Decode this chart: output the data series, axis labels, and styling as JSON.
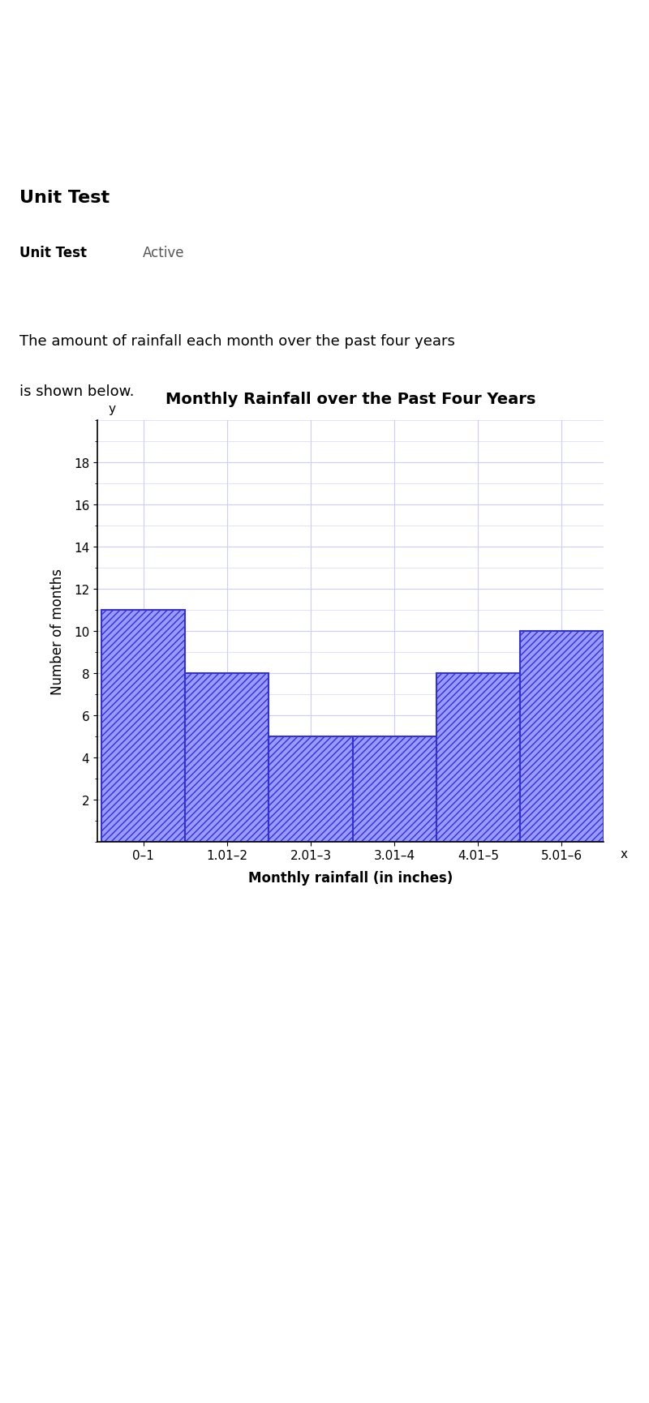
{
  "title": "Monthly Rainfall over the Past Four Years",
  "xlabel": "Monthly rainfall (in inches)",
  "ylabel": "Number of months",
  "categories": [
    "0–1",
    "1.01–2",
    "2.01–3",
    "3.01–4",
    "4.01–5",
    "5.01–6"
  ],
  "values": [
    11,
    8,
    5,
    5,
    8,
    10
  ],
  "bar_color": "#3333cc",
  "hatch_color": "#3333cc",
  "ylim": [
    0,
    20
  ],
  "yticks": [
    2,
    4,
    6,
    8,
    10,
    12,
    14,
    16,
    18
  ],
  "background_color": "#ffffff",
  "grid_color": "#ccccff",
  "title_fontsize": 14,
  "label_fontsize": 12,
  "tick_fontsize": 11,
  "page_bg": "#f0f0f0",
  "text_line1": "The amount of rainfall each month over the past four years",
  "text_line2": "is shown below."
}
